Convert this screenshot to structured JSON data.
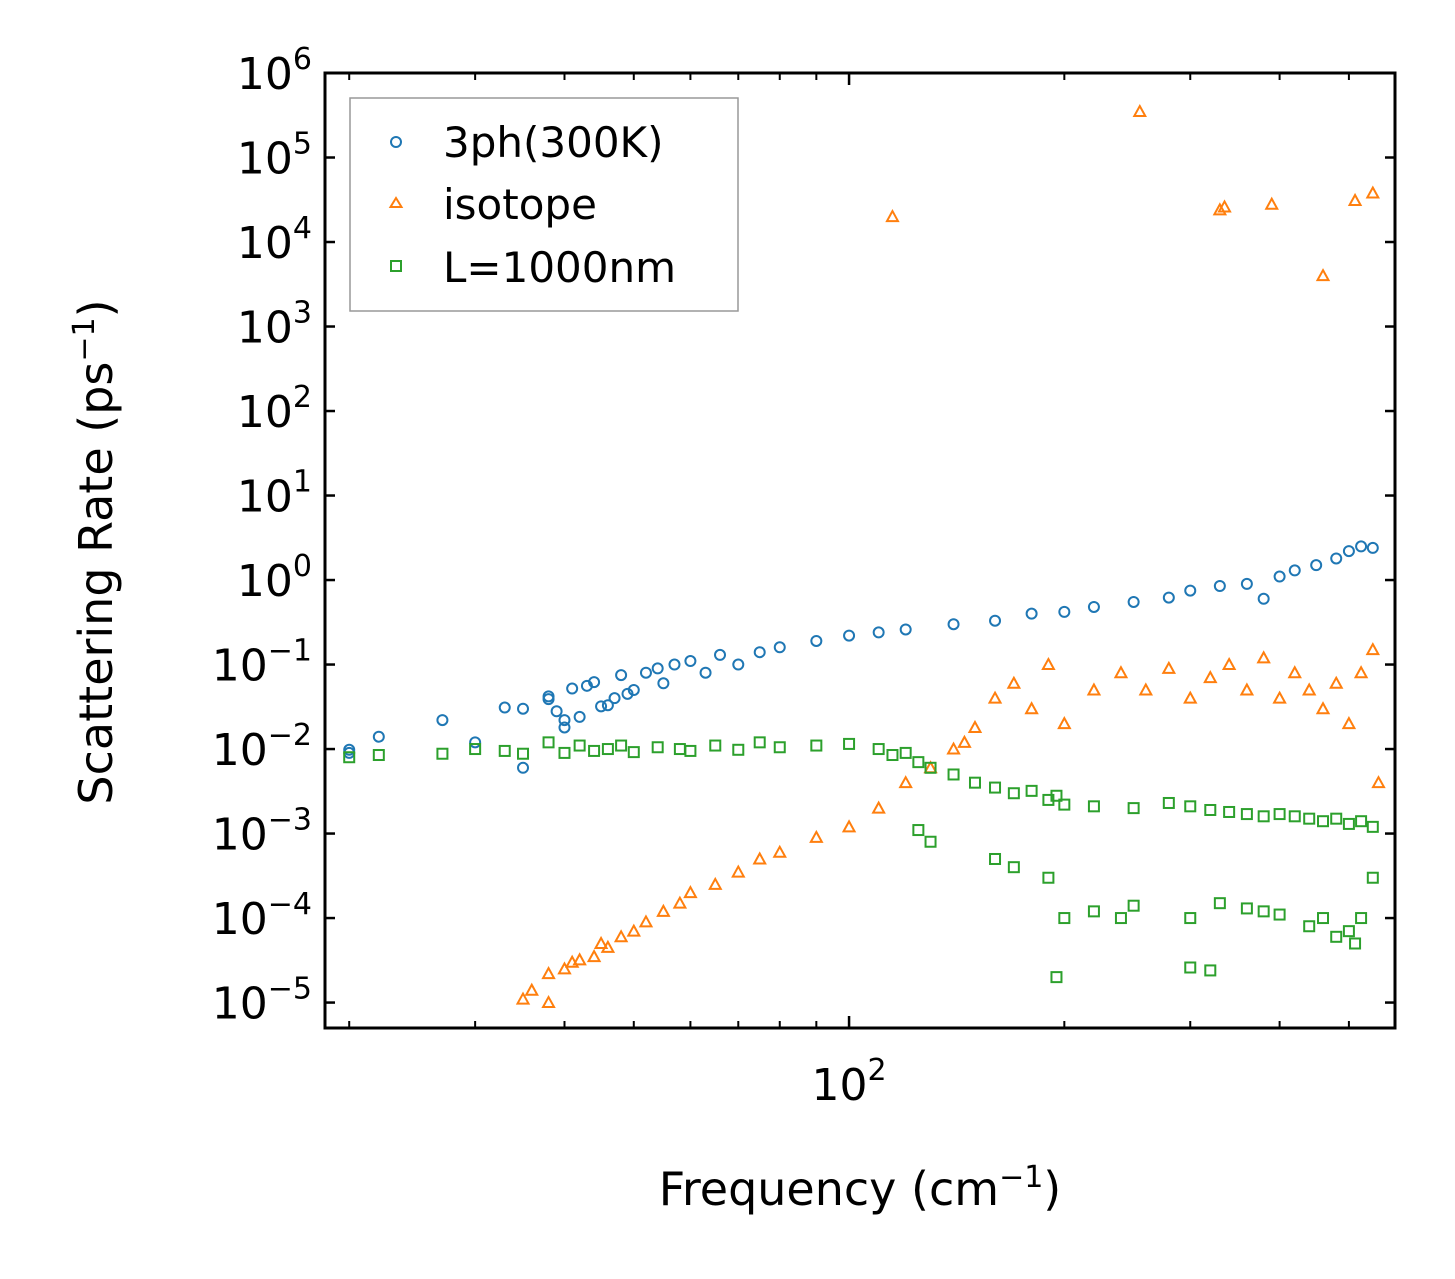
{
  "chart_data": {
    "type": "scatter",
    "title": "",
    "xlabel": "Frequency (cm",
    "xlabel_sup": "−1",
    "xlabel_suffix": ")",
    "ylabel": "Scattering Rate (ps",
    "ylabel_sup": "−1",
    "ylabel_suffix": ")",
    "xscale": "log",
    "yscale": "log",
    "xlim": [
      18.5,
      580
    ],
    "ylim": [
      5e-06,
      1000000.0
    ],
    "x_major_ticks": [
      {
        "value": 100,
        "base": "10",
        "exp": "2"
      }
    ],
    "x_minor_ticks": [
      20,
      30,
      40,
      50,
      60,
      70,
      80,
      90,
      200,
      300,
      400,
      500
    ],
    "y_ticks": [
      {
        "value": 1000000.0,
        "base": "10",
        "exp": "6"
      },
      {
        "value": 100000.0,
        "base": "10",
        "exp": "5"
      },
      {
        "value": 10000.0,
        "base": "10",
        "exp": "4"
      },
      {
        "value": 1000.0,
        "base": "10",
        "exp": "3"
      },
      {
        "value": 100.0,
        "base": "10",
        "exp": "2"
      },
      {
        "value": 10.0,
        "base": "10",
        "exp": "1"
      },
      {
        "value": 1.0,
        "base": "10",
        "exp": "0"
      },
      {
        "value": 0.1,
        "base": "10",
        "exp": "−1"
      },
      {
        "value": 0.01,
        "base": "10",
        "exp": "−2"
      },
      {
        "value": 0.001,
        "base": "10",
        "exp": "−3"
      },
      {
        "value": 0.0001,
        "base": "10",
        "exp": "−4"
      },
      {
        "value": 1e-05,
        "base": "10",
        "exp": "−5"
      }
    ],
    "legend_position": "top-left",
    "series": [
      {
        "name": "3ph(300K)",
        "marker": "circle",
        "color": "#1f77b4",
        "x": [
          20,
          20,
          22,
          27,
          30,
          33,
          35,
          35,
          38,
          38,
          39,
          40,
          40,
          41,
          42,
          43,
          44,
          45,
          46,
          47,
          48,
          49,
          50,
          52,
          54,
          55,
          57,
          60,
          63,
          66,
          70,
          75,
          80,
          90,
          100,
          110,
          120,
          140,
          160,
          180,
          200,
          220,
          250,
          280,
          300,
          330,
          360,
          380,
          400,
          420,
          450,
          480,
          500,
          520,
          540
        ],
        "y": [
          0.009,
          0.0098,
          0.014,
          0.022,
          0.012,
          0.031,
          0.03,
          0.006,
          0.039,
          0.042,
          0.028,
          0.022,
          0.018,
          0.052,
          0.024,
          0.056,
          0.062,
          0.032,
          0.033,
          0.04,
          0.075,
          0.045,
          0.05,
          0.08,
          0.09,
          0.06,
          0.1,
          0.11,
          0.08,
          0.13,
          0.1,
          0.14,
          0.16,
          0.19,
          0.22,
          0.24,
          0.26,
          0.3,
          0.33,
          0.4,
          0.42,
          0.48,
          0.55,
          0.62,
          0.75,
          0.85,
          0.9,
          0.6,
          1.1,
          1.3,
          1.5,
          1.8,
          2.2,
          2.5,
          2.4
        ]
      },
      {
        "name": "isotope",
        "marker": "triangle",
        "color": "#ff7f0e",
        "x": [
          35,
          36,
          38,
          38,
          40,
          41,
          42,
          44,
          45,
          46,
          48,
          50,
          52,
          55,
          58,
          60,
          65,
          70,
          75,
          80,
          90,
          100,
          110,
          120,
          130,
          140,
          145,
          150,
          160,
          170,
          180,
          190,
          200,
          220,
          240,
          260,
          280,
          300,
          320,
          340,
          360,
          380,
          400,
          420,
          440,
          460,
          480,
          500,
          520,
          540,
          550,
          115,
          255,
          330,
          335,
          390,
          460,
          510,
          540
        ],
        "y": [
          1.1e-05,
          1.4e-05,
          1e-05,
          2.2e-05,
          2.5e-05,
          3e-05,
          3.2e-05,
          3.5e-05,
          5e-05,
          4.5e-05,
          6e-05,
          7e-05,
          9e-05,
          0.00012,
          0.00015,
          0.0002,
          0.00025,
          0.00035,
          0.0005,
          0.0006,
          0.0009,
          0.0012,
          0.002,
          0.004,
          0.006,
          0.01,
          0.012,
          0.018,
          0.04,
          0.06,
          0.03,
          0.1,
          0.02,
          0.05,
          0.08,
          0.05,
          0.09,
          0.04,
          0.07,
          0.1,
          0.05,
          0.12,
          0.04,
          0.08,
          0.05,
          0.03,
          0.06,
          0.02,
          0.08,
          0.15,
          0.004,
          20000,
          350000,
          24000,
          26000,
          28000,
          4000,
          31000,
          38000
        ]
      },
      {
        "name": "L=1000nm",
        "marker": "square",
        "color": "#2ca02c",
        "x": [
          20,
          22,
          27,
          30,
          33,
          35,
          38,
          40,
          42,
          44,
          46,
          48,
          50,
          54,
          58,
          60,
          65,
          70,
          75,
          80,
          90,
          100,
          110,
          115,
          120,
          125,
          130,
          140,
          150,
          160,
          170,
          180,
          190,
          195,
          200,
          220,
          250,
          280,
          300,
          320,
          340,
          360,
          380,
          400,
          420,
          440,
          460,
          480,
          500,
          520,
          540,
          125,
          130,
          160,
          170,
          190,
          200,
          220,
          240,
          250,
          300,
          330,
          360,
          380,
          400,
          440,
          460,
          480,
          500,
          510,
          520,
          540,
          195,
          300,
          320
        ],
        "y": [
          0.008,
          0.0085,
          0.0088,
          0.01,
          0.0095,
          0.0088,
          0.012,
          0.009,
          0.011,
          0.0095,
          0.01,
          0.011,
          0.0092,
          0.0105,
          0.01,
          0.0095,
          0.011,
          0.0098,
          0.012,
          0.0105,
          0.011,
          0.0115,
          0.01,
          0.0085,
          0.009,
          0.007,
          0.006,
          0.005,
          0.004,
          0.0035,
          0.003,
          0.0032,
          0.0025,
          0.0028,
          0.0022,
          0.0021,
          0.002,
          0.0023,
          0.0021,
          0.0019,
          0.0018,
          0.0017,
          0.0016,
          0.0017,
          0.0016,
          0.0015,
          0.0014,
          0.0015,
          0.0013,
          0.0014,
          0.0012,
          0.0011,
          0.0008,
          0.0005,
          0.0004,
          0.0003,
          0.0001,
          0.00012,
          0.0001,
          0.00014,
          0.0001,
          0.00015,
          0.00013,
          0.00012,
          0.00011,
          8e-05,
          0.0001,
          6e-05,
          7e-05,
          5e-05,
          0.0001,
          0.0003,
          2e-05,
          2.6e-05,
          2.4e-05
        ]
      }
    ]
  }
}
